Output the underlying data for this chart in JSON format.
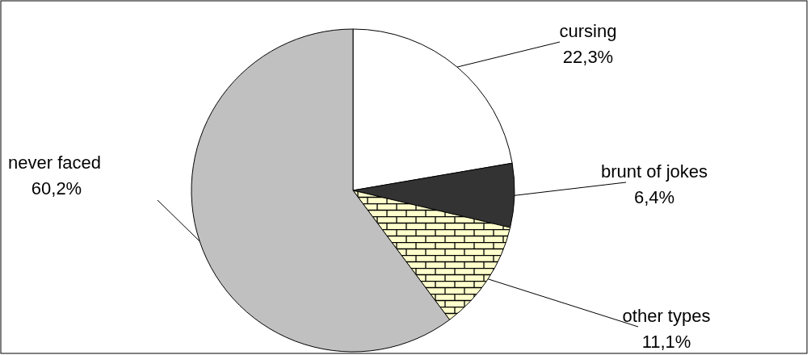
{
  "chart_data": {
    "type": "pie",
    "categories": [
      "cursing",
      "brunt of jokes",
      "other types",
      "never faced"
    ],
    "values": [
      22.3,
      6.4,
      11.1,
      60.2
    ],
    "value_labels": [
      "22,3%",
      "6,4%",
      "11,1%",
      "60,2%"
    ],
    "colors": [
      "#ffffff",
      "#333333",
      "#ffffcc",
      "#c0c0c0"
    ]
  }
}
